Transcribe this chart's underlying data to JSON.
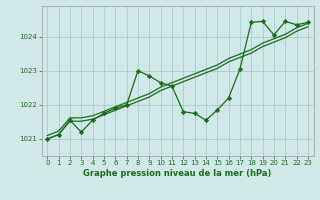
{
  "background_color": "#d0e8e8",
  "grid_color": "#a8cccc",
  "line_color": "#1a6b1a",
  "text_color": "#1a6b1a",
  "xlabel": "Graphe pression niveau de la mer (hPa)",
  "ylim": [
    1020.5,
    1024.9
  ],
  "xlim": [
    -0.5,
    23.5
  ],
  "yticks": [
    1021,
    1022,
    1023,
    1024
  ],
  "xticks": [
    0,
    1,
    2,
    3,
    4,
    5,
    6,
    7,
    8,
    9,
    10,
    11,
    12,
    13,
    14,
    15,
    16,
    17,
    18,
    19,
    20,
    21,
    22,
    23
  ],
  "line1_y": [
    1021.0,
    1021.13,
    1021.52,
    1021.52,
    1021.58,
    1021.71,
    1021.84,
    1021.97,
    1022.1,
    1022.23,
    1022.42,
    1022.55,
    1022.68,
    1022.81,
    1022.94,
    1023.07,
    1023.26,
    1023.39,
    1023.52,
    1023.71,
    1023.84,
    1023.97,
    1024.16,
    1024.29
  ],
  "line2_y": [
    1021.1,
    1021.23,
    1021.62,
    1021.62,
    1021.68,
    1021.81,
    1021.94,
    1022.07,
    1022.2,
    1022.33,
    1022.52,
    1022.65,
    1022.78,
    1022.91,
    1023.04,
    1023.17,
    1023.36,
    1023.49,
    1023.62,
    1023.81,
    1023.94,
    1024.07,
    1024.26,
    1024.39
  ],
  "line3_y": [
    1021.0,
    1021.13,
    1021.55,
    1021.2,
    1021.55,
    1021.75,
    1021.9,
    1022.0,
    1023.0,
    1022.85,
    1022.65,
    1022.55,
    1021.8,
    1021.75,
    1021.55,
    1021.85,
    1022.2,
    1023.05,
    1024.42,
    1024.45,
    1024.05,
    1024.45,
    1024.35,
    1024.42
  ]
}
